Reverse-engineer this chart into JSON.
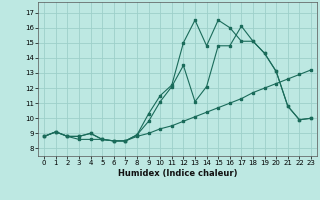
{
  "xlabel": "Humidex (Indice chaleur)",
  "background_color": "#bde8e2",
  "grid_color": "#9dd0ca",
  "line_color": "#1a6b5a",
  "xlim": [
    -0.5,
    23.5
  ],
  "ylim": [
    7.5,
    17.7
  ],
  "xticks": [
    0,
    1,
    2,
    3,
    4,
    5,
    6,
    7,
    8,
    9,
    10,
    11,
    12,
    13,
    14,
    15,
    16,
    17,
    18,
    19,
    20,
    21,
    22,
    23
  ],
  "yticks": [
    8,
    9,
    10,
    11,
    12,
    13,
    14,
    15,
    16,
    17
  ],
  "line1_x": [
    0,
    1,
    2,
    3,
    4,
    5,
    6,
    7,
    8,
    9,
    10,
    11,
    12,
    13,
    14,
    15,
    16,
    17,
    18,
    19,
    20,
    21,
    22,
    23
  ],
  "line1_y": [
    8.8,
    9.1,
    8.8,
    8.6,
    8.6,
    8.6,
    8.5,
    8.5,
    8.8,
    9.0,
    9.3,
    9.5,
    9.8,
    10.1,
    10.4,
    10.7,
    11.0,
    11.3,
    11.7,
    12.0,
    12.3,
    12.6,
    12.9,
    13.2
  ],
  "line2_x": [
    0,
    1,
    2,
    3,
    4,
    5,
    6,
    7,
    8,
    9,
    10,
    11,
    12,
    13,
    14,
    15,
    16,
    17,
    18,
    19,
    20,
    21,
    22,
    23
  ],
  "line2_y": [
    8.8,
    9.1,
    8.8,
    8.8,
    9.0,
    8.6,
    8.5,
    8.5,
    8.9,
    9.8,
    11.1,
    12.1,
    13.5,
    11.1,
    12.1,
    14.8,
    14.8,
    16.1,
    15.1,
    14.3,
    13.1,
    10.8,
    9.9,
    10.0
  ],
  "line3_x": [
    0,
    1,
    2,
    3,
    4,
    5,
    6,
    7,
    8,
    9,
    10,
    11,
    12,
    13,
    14,
    15,
    16,
    17,
    18,
    19,
    20,
    21,
    22,
    23
  ],
  "line3_y": [
    8.8,
    9.1,
    8.8,
    8.8,
    9.0,
    8.6,
    8.5,
    8.5,
    8.9,
    10.3,
    11.5,
    12.2,
    15.0,
    16.5,
    14.8,
    16.5,
    16.0,
    15.1,
    15.1,
    14.3,
    13.1,
    10.8,
    9.9,
    10.0
  ]
}
